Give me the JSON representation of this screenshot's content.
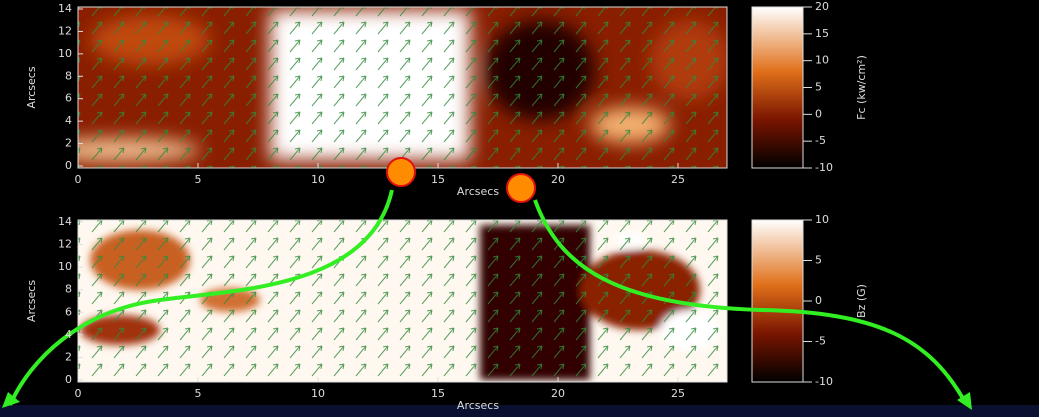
{
  "panels": [
    {
      "y_label": "Arcsecs",
      "x_label": "Arcsecs",
      "xticks": [
        0,
        5,
        10,
        15,
        20,
        25
      ],
      "yticks": [
        0,
        2,
        4,
        6,
        8,
        10,
        12,
        14
      ],
      "colorbar": {
        "label": "Fc (kw/cm²)",
        "ticks": [
          20,
          15,
          10,
          5,
          0,
          -5,
          -10
        ]
      }
    },
    {
      "y_label": "Arcsecs",
      "x_label": "Arcsecs",
      "xticks": [
        0,
        5,
        10,
        15,
        20,
        25
      ],
      "yticks": [
        0,
        2,
        4,
        6,
        8,
        10,
        12,
        14
      ],
      "colorbar": {
        "label": "Bz (G)",
        "ticks": [
          10,
          5,
          0,
          -5,
          -10
        ]
      }
    }
  ]
}
